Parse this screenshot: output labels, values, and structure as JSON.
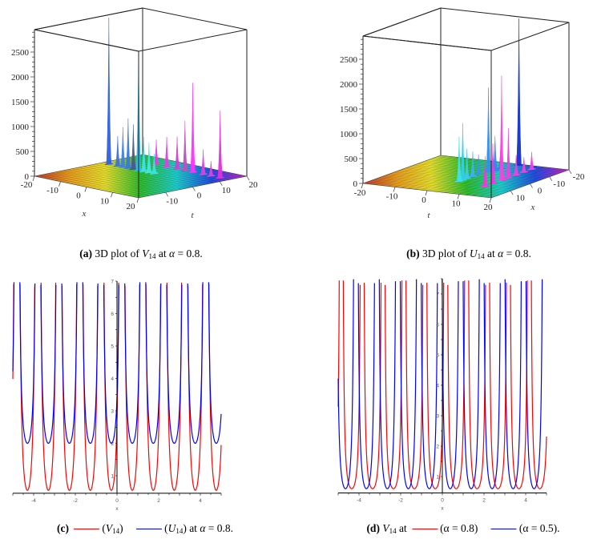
{
  "colors": {
    "red": "#ff0000",
    "blue": "#0000ff",
    "box": "#222222"
  },
  "floor_colors": [
    "#c0392b",
    "#e8a020",
    "#e8e030",
    "#30c030",
    "#20d0d0",
    "#2050e0",
    "#d020d0"
  ],
  "chart_data": [
    {
      "id": "a",
      "type": "surface3d",
      "zlabel": "",
      "xlabel": "x",
      "tlabel": "t",
      "xlim": [
        -20,
        20
      ],
      "tlim": [
        -20,
        20
      ],
      "zlim": [
        0,
        2900
      ],
      "z_ticks": [
        0,
        500,
        1000,
        1500,
        2000,
        2500
      ],
      "x_ticks": [
        "-20",
        "-10",
        "0",
        "10",
        "20"
      ],
      "t_ticks": [
        "-10",
        "0",
        "10",
        "20"
      ],
      "spikes": [
        {
          "x": -17.4,
          "t": 5,
          "h": 2950,
          "color": "#3060e0"
        },
        {
          "x": -14,
          "t": 5,
          "h": 600,
          "color": "#4070e0"
        },
        {
          "x": -12,
          "t": 5,
          "h": 800,
          "color": "#4080e8"
        },
        {
          "x": -10,
          "t": 5,
          "h": 1000,
          "color": "#3a78e0"
        },
        {
          "x": -8,
          "t": 5,
          "h": 900,
          "color": "#4a5a90"
        },
        {
          "x": -6,
          "t": 5,
          "h": 2400,
          "color": "#30b8f0"
        },
        {
          "x": -4,
          "t": 5,
          "h": 700,
          "color": "#40e0f0"
        },
        {
          "x": -2,
          "t": 5,
          "h": 600,
          "color": "#40e8e8"
        },
        {
          "x": 0,
          "t": 5,
          "h": 400,
          "color": "#40e0e0"
        },
        {
          "x": -8,
          "t": 13.5,
          "h": 500,
          "color": "#e040e0"
        },
        {
          "x": -4,
          "t": 13.5,
          "h": 600,
          "color": "#e040e0"
        },
        {
          "x": 0,
          "t": 13.5,
          "h": 650,
          "color": "#d040d0"
        },
        {
          "x": 3,
          "t": 13.5,
          "h": 1000,
          "color": "#c050c0"
        },
        {
          "x": 6,
          "t": 13.5,
          "h": 1800,
          "color": "#ff30ff"
        },
        {
          "x": 10,
          "t": 13.5,
          "h": 500,
          "color": "#e040e0"
        },
        {
          "x": 13,
          "t": 13.5,
          "h": 300,
          "color": "#e040e0"
        },
        {
          "x": 16.5,
          "t": 13.5,
          "h": 1350,
          "color": "#e030e0"
        }
      ]
    },
    {
      "id": "b",
      "type": "surface3d",
      "zlabel": "",
      "xlabel": "x",
      "tlabel": "t",
      "xlim": [
        20,
        -20
      ],
      "tlim": [
        -20,
        20
      ],
      "zlim": [
        0,
        2900
      ],
      "z_ticks": [
        0,
        500,
        1000,
        1500,
        2000,
        2500
      ],
      "t_ticks": [
        "-20",
        "-10",
        "0",
        "10",
        "20"
      ],
      "x_ticks": [
        "10",
        "0",
        "-10",
        "-20"
      ],
      "spikes": [
        {
          "t": 1.5,
          "x": 6,
          "h": 900,
          "color": "#40e0f0"
        },
        {
          "t": 1.6,
          "x": 4.3,
          "h": 1150,
          "color": "#30d0e8"
        },
        {
          "t": 1.5,
          "x": 2,
          "h": 600,
          "color": "#40c8f0"
        },
        {
          "t": 1.5,
          "x": -1,
          "h": 500,
          "color": "#40b0f0"
        },
        {
          "t": 1.5,
          "x": -4,
          "h": 400,
          "color": "#4090f0"
        },
        {
          "t": 2.4,
          "x": -7.6,
          "h": 1700,
          "color": "#3090f0"
        },
        {
          "t": 3,
          "x": -10,
          "h": 700,
          "color": "#4080f0"
        },
        {
          "t": 3,
          "x": -13,
          "h": 500,
          "color": "#4070e0"
        },
        {
          "t": 5,
          "x": -19,
          "h": 2950,
          "color": "#1030d0"
        },
        {
          "t": 10.8,
          "x": 8,
          "h": 600,
          "color": "#ff30e0"
        },
        {
          "t": 10.8,
          "x": 4,
          "h": 800,
          "color": "#ff30e0"
        },
        {
          "t": 10.8,
          "x": -0.5,
          "h": 2100,
          "color": "#ff40e0"
        },
        {
          "t": 10.8,
          "x": -4,
          "h": 1000,
          "color": "#f040e0"
        },
        {
          "t": 10.8,
          "x": -8,
          "h": 400,
          "color": "#f040e0"
        },
        {
          "t": 10.8,
          "x": -12,
          "h": 300,
          "color": "#f040e0"
        },
        {
          "t": 10.8,
          "x": -16,
          "h": 350,
          "color": "#f040e0"
        }
      ]
    },
    {
      "id": "c",
      "type": "line",
      "xlabel": "x",
      "xlim": [
        -5,
        5
      ],
      "ylim": [
        0.46,
        7
      ],
      "x_ticks": [
        -4,
        -2,
        0,
        2,
        4
      ],
      "y_ticks": [
        1,
        2,
        3,
        4,
        5,
        6,
        7
      ],
      "series": [
        {
          "name": "V14",
          "color": "#ff0000",
          "first_min_x": -4.3,
          "period": 1.007,
          "min_y": 0.55
        },
        {
          "name": "U14",
          "color": "#0000ff",
          "first_min_x": -4.3,
          "period": 1.007,
          "min_y": 2.0
        }
      ]
    },
    {
      "id": "d",
      "type": "line",
      "xlabel": "x",
      "xlim": [
        -5,
        5
      ],
      "ylim": [
        0.46,
        7.5
      ],
      "x_ticks": [
        -4,
        -2,
        0,
        2,
        4
      ],
      "y_ticks": [
        1,
        2,
        3,
        4,
        5,
        6,
        7
      ],
      "series": [
        {
          "name": "α = 0.8",
          "color": "#ff0000",
          "first_min_x": -4.35,
          "period": 1.003,
          "min_y": 0.6
        },
        {
          "name": "α = 0.5",
          "color": "#0000ff",
          "first_min_x": -4.65,
          "period": 1.006,
          "min_y": 0.6
        }
      ]
    }
  ],
  "captions": {
    "a": {
      "label": "(a)",
      "pre": " 3D plot of ",
      "var": "V",
      "sub": "14",
      "mid": " at ",
      "alpha": "α",
      "post": " = 0.8."
    },
    "b": {
      "label": "(b)",
      "pre": " 3D plot of ",
      "var": "U",
      "sub": "14",
      "mid": " at ",
      "alpha": "α",
      "post": " = 0.8."
    },
    "c": {
      "label": "(c)",
      "s1_open": "(",
      "s1_var": "V",
      "s1_sub": "14",
      "s1_close": ")",
      "s2_open": "(",
      "s2_var": "U",
      "s2_sub": "14",
      "s2_close": ")",
      "tail_pre": " at ",
      "alpha": "α",
      "tail_post": " = 0.8."
    },
    "d": {
      "label": "(d)",
      "var": "V",
      "sub": "14",
      "at": " at ",
      "s1": "(α = 0.8)",
      "s2": "(α = 0.5)."
    }
  }
}
